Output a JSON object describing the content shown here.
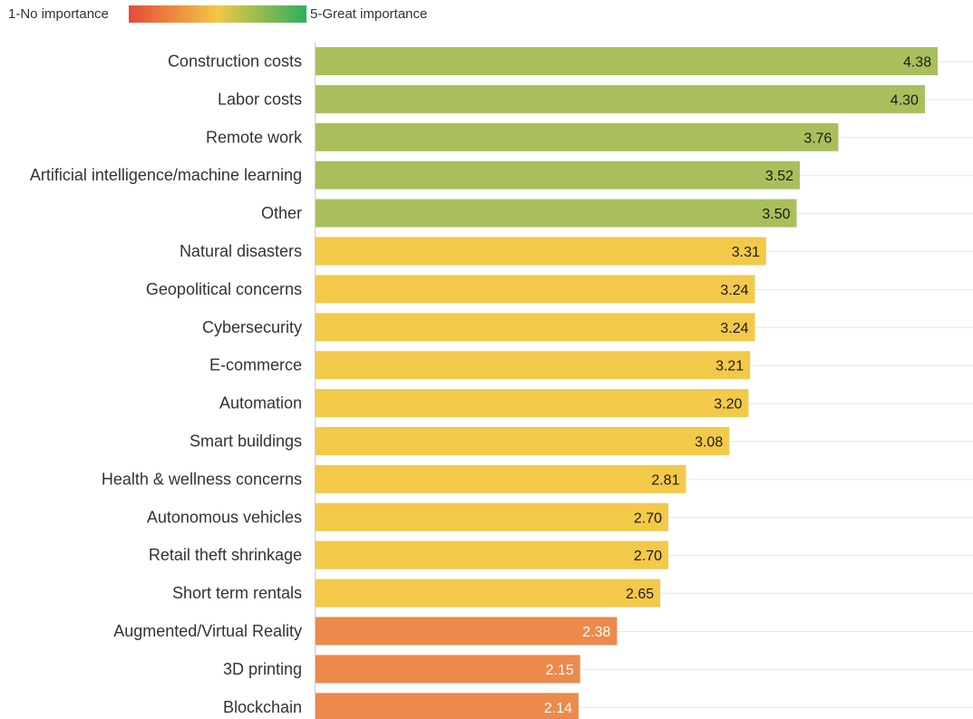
{
  "legend": {
    "min_label": "1-No importance",
    "max_label": "5-Great importance",
    "gradient_colors": [
      "#e8493a",
      "#f2c744",
      "#2bb05e"
    ]
  },
  "chart_data": {
    "type": "bar",
    "orientation": "horizontal",
    "categories": [
      "Construction costs",
      "Labor costs",
      "Remote work",
      "Artificial intelligence/machine learning",
      "Other",
      "Natural disasters",
      "Geopolitical concerns",
      "Cybersecurity",
      "E-commerce",
      "Automation",
      "Smart buildings",
      "Health & wellness concerns",
      "Autonomous vehicles",
      "Retail theft shrinkage",
      "Short term rentals",
      "Augmented/Virtual Reality",
      "3D printing",
      "Blockchain"
    ],
    "values": [
      4.38,
      4.3,
      3.76,
      3.52,
      3.5,
      3.31,
      3.24,
      3.24,
      3.21,
      3.2,
      3.08,
      2.81,
      2.7,
      2.7,
      2.65,
      2.38,
      2.15,
      2.14
    ],
    "value_labels": [
      "4.38",
      "4.30",
      "3.76",
      "3.52",
      "3.50",
      "3.31",
      "3.24",
      "3.24",
      "3.21",
      "3.20",
      "3.08",
      "2.81",
      "2.70",
      "2.70",
      "2.65",
      "2.38",
      "2.15",
      "2.14"
    ],
    "xlim": [
      0.5,
      4.6
    ],
    "grid": true,
    "color_bands": [
      {
        "min": 3.5,
        "color": "#a9bf5c",
        "label_color": "#1a1a1a"
      },
      {
        "min": 2.5,
        "color": "#f3c94a",
        "label_color": "#1a1a1a"
      },
      {
        "min": 0,
        "color": "#ec8a4b",
        "label_color": "#ffffff"
      }
    ]
  }
}
